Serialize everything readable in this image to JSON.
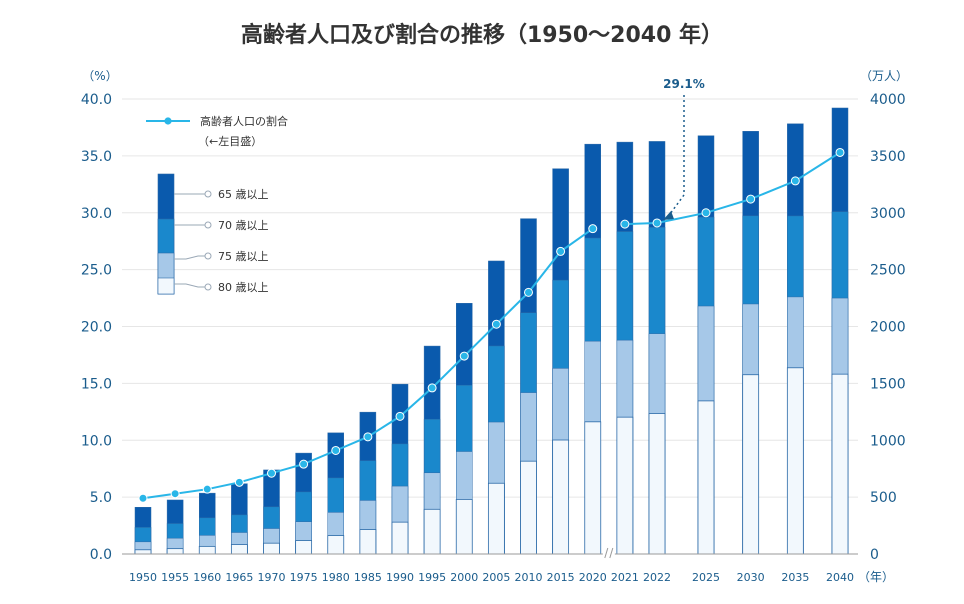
{
  "title": "高齢者人口及び割合の推移（1950～2040 年）",
  "left_unit": "（%）",
  "right_unit": "（万人）",
  "x_unit": "（年）",
  "callout": "29.1%",
  "legend": {
    "line_label": "高齢者人口の割合",
    "line_note": "（←左目盛）",
    "bar_labels": [
      "65 歳以上",
      "70 歳以上",
      "75 歳以上",
      "80 歳以上"
    ]
  },
  "colors": {
    "axis_text": "#1a5c8c",
    "bar_65": "#0a5aad",
    "bar_70": "#1a88cc",
    "bar_75": "#a6c8e8",
    "bar_80": "#f2f8fd",
    "line": "#29b6e8",
    "grid": "#e6e6e6",
    "title": "#333333"
  },
  "chart_data": {
    "type": "bar",
    "subtype": "overlapping-bars-with-line",
    "left_axis": {
      "ylim": [
        0,
        40
      ],
      "ticks": [
        "0.0",
        "5.0",
        "10.0",
        "15.0",
        "20.0",
        "25.0",
        "30.0",
        "35.0",
        "40.0"
      ]
    },
    "right_axis": {
      "ylim": [
        0,
        4000
      ],
      "ticks": [
        "0",
        "500",
        "1000",
        "1500",
        "2000",
        "2500",
        "3000",
        "3500",
        "4000"
      ]
    },
    "categories": [
      "1950",
      "1955",
      "1960",
      "1965",
      "1970",
      "1975",
      "1980",
      "1985",
      "1990",
      "1995",
      "2000",
      "2005",
      "2010",
      "2015",
      "2020",
      "2021",
      "2022",
      "2025",
      "2030",
      "2035",
      "2040"
    ],
    "axis_break_after": "2020",
    "gap_before": "2025",
    "series": [
      {
        "name": "65 歳以上",
        "axis": "right",
        "values": [
          411,
          475,
          535,
          618,
          739,
          887,
          1065,
          1247,
          1493,
          1828,
          2204,
          2576,
          2948,
          3387,
          3603,
          3621,
          3627,
          3677,
          3716,
          3782,
          3921
        ]
      },
      {
        "name": "70 歳以上",
        "axis": "right",
        "values": [
          234,
          268,
          318,
          344,
          415,
          546,
          669,
          821,
          968,
          1185,
          1484,
          1829,
          2121,
          2408,
          2778,
          2835,
          2872,
          2962,
          2973,
          2972,
          3010
        ]
      },
      {
        "name": "75 歳以上",
        "axis": "right",
        "values": [
          107,
          139,
          164,
          189,
          224,
          284,
          366,
          471,
          597,
          714,
          901,
          1160,
          1419,
          1632,
          1871,
          1880,
          1937,
          2180,
          2198,
          2260,
          2250
        ]
      },
      {
        "name": "80 歳以上",
        "axis": "right",
        "values": [
          37,
          47,
          67,
          83,
          95,
          118,
          162,
          215,
          280,
          393,
          480,
          622,
          816,
          1002,
          1162,
          1203,
          1235,
          1346,
          1576,
          1637,
          1581
        ]
      },
      {
        "name": "高齢者人口の割合",
        "axis": "left",
        "type": "line",
        "values": [
          4.9,
          5.3,
          5.7,
          6.3,
          7.1,
          7.9,
          9.1,
          10.3,
          12.1,
          14.6,
          17.4,
          20.2,
          23.0,
          26.6,
          28.6,
          29.0,
          29.1,
          30.0,
          31.2,
          32.8,
          35.3
        ]
      }
    ]
  }
}
